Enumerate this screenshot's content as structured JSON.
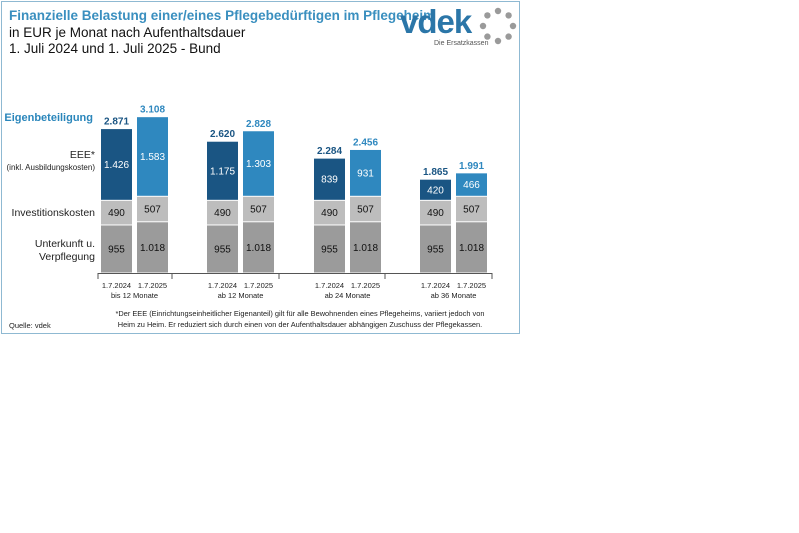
{
  "header": {
    "title_line1": "Finanzielle Belastung einer/eines Pflegebedürftigen im Pflegeheim",
    "title_line2": "in EUR je Monat nach Aufenthaltsdauer",
    "title_line3": "1. Juli 2024 und 1. Juli 2025 - Bund"
  },
  "logo": {
    "wordmark": "vdek",
    "tagline": "Die Ersatzkassen",
    "icon": "vdek-ring-icon"
  },
  "colors": {
    "accent": "#2a86bb",
    "eee_2024": "#1a5583",
    "eee_2025": "#2f88bf",
    "invest": "#bdbdbd",
    "unterkunft": "#9b9b9b",
    "axis": "#555555"
  },
  "chart_data": {
    "type": "bar",
    "stacked": true,
    "dates": [
      "1.7.2024",
      "1.7.2025"
    ],
    "groups": [
      "bis 12 Monate",
      "ab 12 Monate",
      "ab 24 Monate",
      "ab 36 Monate"
    ],
    "categories": [
      "1.7.2024",
      "1.7.2025",
      "1.7.2024",
      "1.7.2025",
      "1.7.2024",
      "1.7.2025",
      "1.7.2024",
      "1.7.2025"
    ],
    "series": [
      {
        "name": "Unterkunft u. Verpflegung",
        "values": [
          955,
          1018,
          955,
          1018,
          955,
          1018,
          955,
          1018
        ],
        "labels": [
          "955",
          "1.018",
          "955",
          "1.018",
          "955",
          "1.018",
          "955",
          "1.018"
        ]
      },
      {
        "name": "Investitionskosten",
        "values": [
          490,
          507,
          490,
          507,
          490,
          507,
          490,
          507
        ],
        "labels": [
          "490",
          "507",
          "490",
          "507",
          "490",
          "507",
          "490",
          "507"
        ]
      },
      {
        "name": "EEE*",
        "values": [
          1426,
          1583,
          1175,
          1303,
          839,
          931,
          420,
          466
        ],
        "labels": [
          "1.426",
          "1.583",
          "1.175",
          "1.303",
          "839",
          "931",
          "420",
          "466"
        ]
      }
    ],
    "totals": {
      "name": "Eigenbeteiligung",
      "values": [
        2871,
        3108,
        2620,
        2828,
        2284,
        2456,
        1865,
        1991
      ],
      "labels": [
        "2.871",
        "3.108",
        "2.620",
        "2.828",
        "2.284",
        "2.456",
        "1.865",
        "1.991"
      ]
    },
    "row_labels": {
      "eigenbeteiligung": "Eigenbeteiligung",
      "eee": "EEE*",
      "eee_note": "(inkl. Ausbildungskosten)",
      "invest": "Investitionskosten",
      "unterkunft_1": "Unterkunft u.",
      "unterkunft_2": "Verpflegung"
    }
  },
  "footnote": {
    "line1": "*Der EEE (Einrichtungseinheitlicher Eigenanteil) gilt für alle Bewohnenden eines Pflegeheims, variiert jedoch von",
    "line2": "Heim zu Heim. Er reduziert sich durch einen von der Aufenthaltsdauer abhängigen Zuschuss der Pflegekassen."
  },
  "source": "Quelle: vdek"
}
